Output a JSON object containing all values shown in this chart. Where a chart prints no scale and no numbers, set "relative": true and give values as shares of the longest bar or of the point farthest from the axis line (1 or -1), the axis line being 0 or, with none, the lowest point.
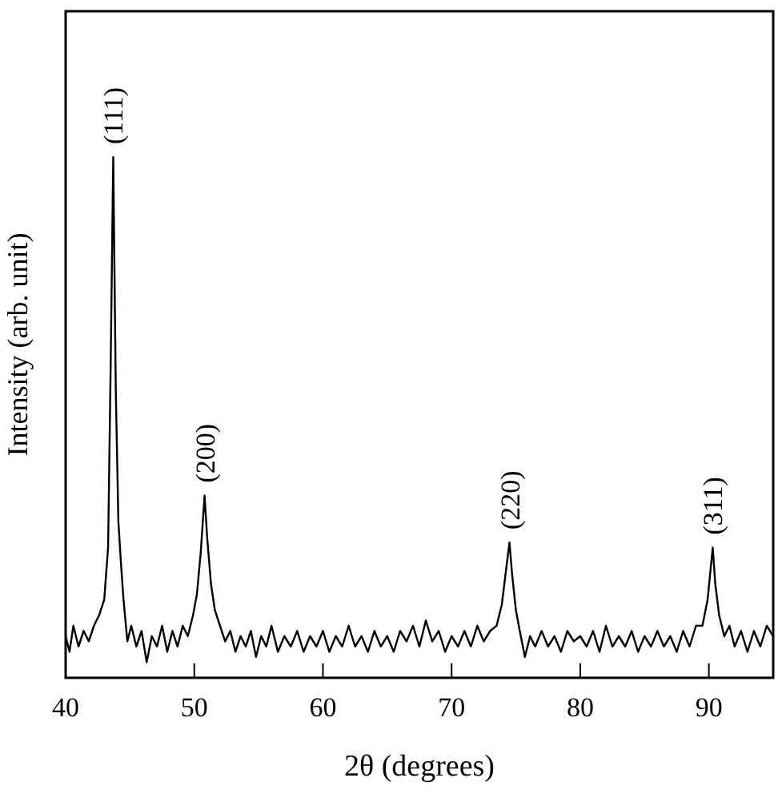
{
  "chart_data": {
    "type": "line",
    "relative": true,
    "xlabel": "2θ (degrees)",
    "ylabel": "Intensity (arb. unit)",
    "xlim": [
      40,
      95
    ],
    "xticks": [
      40,
      50,
      60,
      70,
      80,
      90
    ],
    "grid": false,
    "line_style": "solid",
    "series": [
      {
        "color": "#000000",
        "x": [
          40,
          40.3,
          40.6,
          41,
          41.4,
          41.8,
          42.2,
          42.6,
          43,
          43.3,
          43.5,
          43.7,
          43.9,
          44.1,
          44.3,
          44.5,
          44.8,
          45.1,
          45.5,
          45.9,
          46.3,
          46.7,
          47.1,
          47.5,
          47.9,
          48.3,
          48.7,
          49.1,
          49.5,
          49.9,
          50.2,
          50.5,
          50.8,
          51,
          51.3,
          51.6,
          52,
          52.4,
          52.8,
          53.2,
          53.6,
          54,
          54.4,
          54.8,
          55.2,
          55.6,
          56,
          56.5,
          57,
          57.5,
          58,
          58.5,
          59,
          59.5,
          60,
          60.5,
          61,
          61.5,
          62,
          62.5,
          63,
          63.5,
          64,
          64.5,
          65,
          65.5,
          66,
          66.5,
          67,
          67.5,
          68,
          68.5,
          69,
          69.5,
          70,
          70.5,
          71,
          71.5,
          72,
          72.5,
          73,
          73.5,
          73.9,
          74.2,
          74.5,
          74.7,
          75,
          75.3,
          75.7,
          76.1,
          76.5,
          77,
          77.5,
          78,
          78.5,
          79,
          79.5,
          80,
          80.5,
          81,
          81.5,
          82,
          82.5,
          83,
          83.5,
          84,
          84.5,
          85,
          85.5,
          86,
          86.5,
          87,
          87.5,
          88,
          88.5,
          89,
          89.5,
          89.9,
          90.1,
          90.3,
          90.5,
          90.8,
          91.2,
          91.6,
          92,
          92.5,
          93,
          93.5,
          94,
          94.5,
          95
        ],
        "values": [
          0.08,
          0.05,
          0.1,
          0.06,
          0.09,
          0.07,
          0.1,
          0.12,
          0.15,
          0.25,
          0.6,
          1,
          0.55,
          0.3,
          0.22,
          0.15,
          0.07,
          0.1,
          0.06,
          0.09,
          0.03,
          0.08,
          0.06,
          0.1,
          0.05,
          0.09,
          0.06,
          0.1,
          0.08,
          0.12,
          0.16,
          0.24,
          0.35,
          0.27,
          0.18,
          0.13,
          0.1,
          0.07,
          0.09,
          0.05,
          0.08,
          0.06,
          0.09,
          0.04,
          0.08,
          0.06,
          0.1,
          0.05,
          0.08,
          0.06,
          0.09,
          0.05,
          0.08,
          0.06,
          0.09,
          0.05,
          0.08,
          0.06,
          0.1,
          0.06,
          0.08,
          0.05,
          0.09,
          0.06,
          0.08,
          0.05,
          0.09,
          0.07,
          0.1,
          0.06,
          0.11,
          0.07,
          0.09,
          0.05,
          0.08,
          0.06,
          0.09,
          0.06,
          0.1,
          0.07,
          0.09,
          0.1,
          0.14,
          0.2,
          0.26,
          0.2,
          0.13,
          0.09,
          0.04,
          0.08,
          0.06,
          0.09,
          0.06,
          0.08,
          0.05,
          0.09,
          0.07,
          0.08,
          0.06,
          0.09,
          0.05,
          0.1,
          0.06,
          0.08,
          0.06,
          0.09,
          0.05,
          0.08,
          0.06,
          0.09,
          0.06,
          0.08,
          0.05,
          0.09,
          0.06,
          0.1,
          0.1,
          0.15,
          0.2,
          0.25,
          0.18,
          0.12,
          0.08,
          0.1,
          0.06,
          0.09,
          0.05,
          0.09,
          0.06,
          0.1,
          0.08
        ]
      }
    ],
    "annotations": [
      {
        "text": "(111)",
        "x": 43.7,
        "y": 1
      },
      {
        "text": "(200)",
        "x": 50.8,
        "y": 0.35
      },
      {
        "text": "(220)",
        "x": 74.5,
        "y": 0.26
      },
      {
        "text": "(311)",
        "x": 90.3,
        "y": 0.25
      }
    ]
  }
}
